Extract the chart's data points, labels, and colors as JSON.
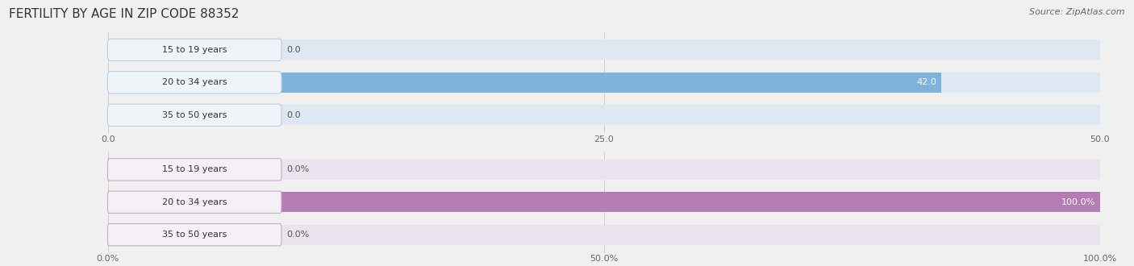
{
  "title": "Female Fertility by Age in Zip Code 88352",
  "title_display": "FERTILITY BY AGE IN ZIP CODE 88352",
  "source": "Source: ZipAtlas.com",
  "top_chart": {
    "categories": [
      "15 to 19 years",
      "20 to 34 years",
      "35 to 50 years"
    ],
    "values": [
      0.0,
      42.0,
      0.0
    ],
    "xlim": [
      0,
      50
    ],
    "xticks": [
      0.0,
      25.0,
      50.0
    ],
    "xtick_labels": [
      "0.0",
      "25.0",
      "50.0"
    ],
    "bar_color": "#7fb3d9",
    "bar_bg_color": "#dde8f2",
    "label_bg_color": "#f0f4f8",
    "label_border_color": "#b8cfe0",
    "value_inside_color": "#ffffff",
    "value_outside_color": "#555555"
  },
  "bottom_chart": {
    "categories": [
      "15 to 19 years",
      "20 to 34 years",
      "35 to 50 years"
    ],
    "values": [
      0.0,
      100.0,
      0.0
    ],
    "xlim": [
      0,
      100
    ],
    "xticks": [
      0.0,
      50.0,
      100.0
    ],
    "xtick_labels": [
      "0.0%",
      "50.0%",
      "100.0%"
    ],
    "bar_color": "#b57db5",
    "bar_bg_color": "#ebe4ef",
    "label_bg_color": "#f5f0f7",
    "label_border_color": "#c8aac8",
    "value_inside_color": "#ffffff",
    "value_outside_color": "#555555"
  },
  "bg_color": "#f0f0f0",
  "chart_bg_color": "#f0f0f0",
  "title_fontsize": 11,
  "source_fontsize": 8,
  "tick_fontsize": 8,
  "label_fontsize": 8,
  "value_fontsize": 8
}
